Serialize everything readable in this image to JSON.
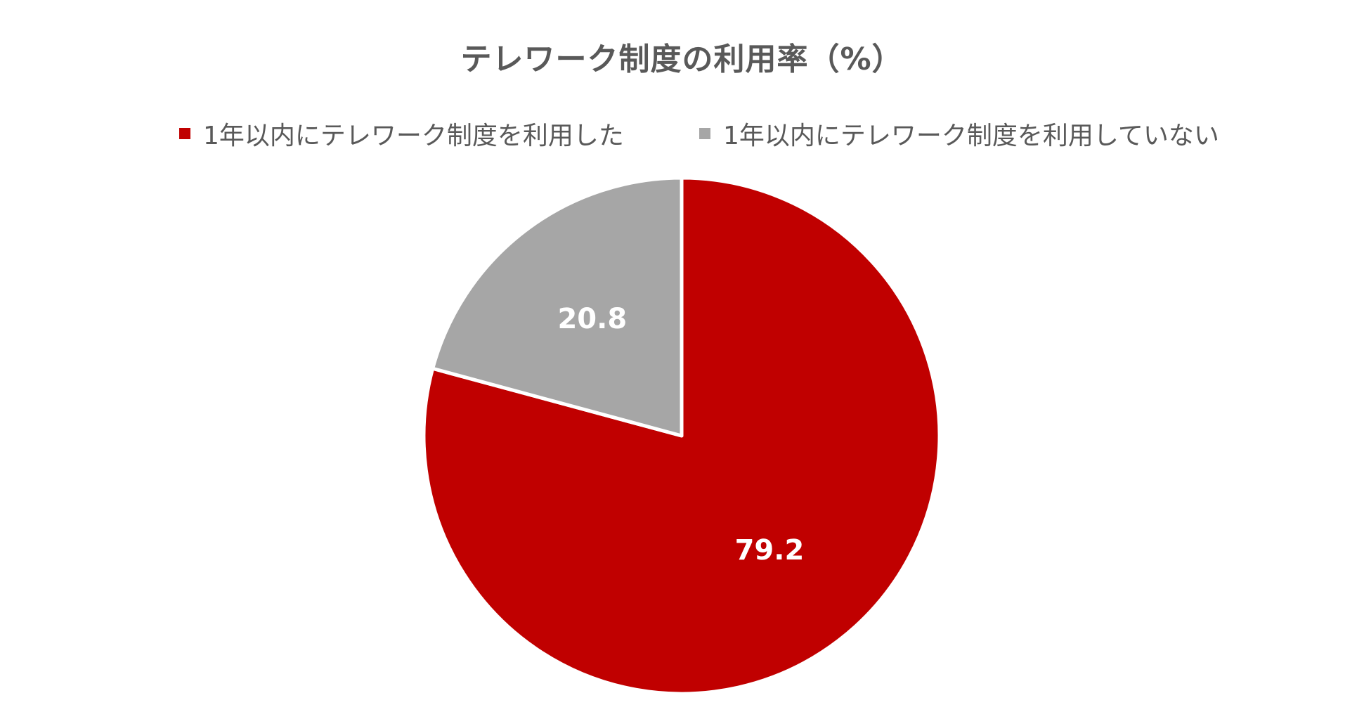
{
  "chart_data": {
    "type": "pie",
    "title": "テレワーク制度の利用率（%）",
    "categories": [
      "1年以内にテレワーク制度を利用した",
      "1年以内にテレワーク制度を利用していない"
    ],
    "values": [
      79.2,
      20.8
    ],
    "labels": [
      "79.2",
      "20.8"
    ],
    "colors": [
      "#C00000",
      "#A6A6A6"
    ],
    "start_angle": "12 o'clock",
    "direction": "clockwise",
    "legend_position": "top"
  }
}
